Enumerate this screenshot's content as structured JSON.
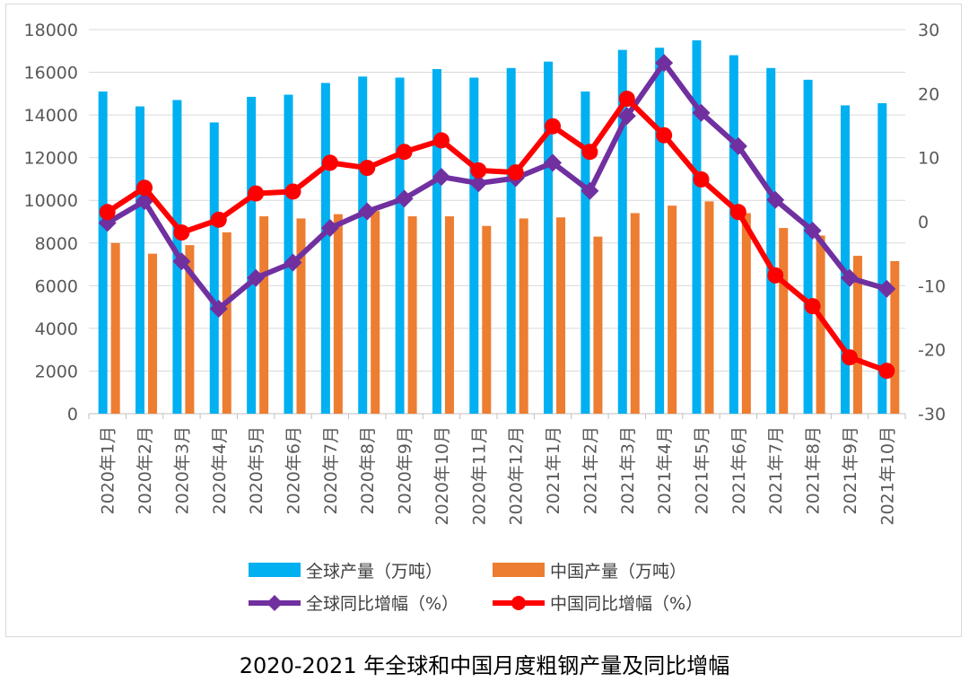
{
  "chart_data": {
    "type": "bar",
    "title": "2020-2021 年全球和中国月度粗钢产量及同比增幅",
    "categories": [
      "2020年1月",
      "2020年2月",
      "2020年3月",
      "2020年4月",
      "2020年5月",
      "2020年6月",
      "2020年7月",
      "2020年8月",
      "2020年9月",
      "2020年10月",
      "2020年11月",
      "2020年12月",
      "2021年1月",
      "2021年2月",
      "2021年3月",
      "2021年4月",
      "2021年5月",
      "2021年6月",
      "2021年7月",
      "2021年8月",
      "2021年9月",
      "2021年10月"
    ],
    "y_left": {
      "min": 0,
      "max": 18000,
      "step": 2000,
      "ticks": [
        "0",
        "2000",
        "4000",
        "6000",
        "8000",
        "10000",
        "12000",
        "14000",
        "16000",
        "18000"
      ]
    },
    "y_right": {
      "min": -30,
      "max": 30,
      "step": 10,
      "ticks": [
        "-30",
        "-20",
        "-10",
        "0",
        "10",
        "20",
        "30"
      ]
    },
    "series": [
      {
        "name": "全球产量（万吨）",
        "type": "bar",
        "axis": "left",
        "color": "#00b0f0",
        "values": [
          15100,
          14400,
          14700,
          13650,
          14850,
          14950,
          15500,
          15800,
          15750,
          16150,
          15750,
          16200,
          16500,
          15100,
          17050,
          17150,
          17500,
          16800,
          16200,
          15650,
          14450,
          14550
        ]
      },
      {
        "name": "中国产量（万吨）",
        "type": "bar",
        "axis": "left",
        "color": "#ed7d31",
        "values": [
          8000,
          7500,
          7900,
          8500,
          9250,
          9150,
          9350,
          9500,
          9250,
          9250,
          8800,
          9150,
          9200,
          8300,
          9400,
          9750,
          9950,
          9400,
          8700,
          8350,
          7400,
          7150
        ]
      },
      {
        "name": "全球同比增幅（%）",
        "type": "line",
        "axis": "right",
        "color": "#7030a0",
        "marker": "diamond",
        "values": [
          -0.2,
          3.2,
          -6.2,
          -13.6,
          -8.8,
          -6.4,
          -1.0,
          1.6,
          3.6,
          7.0,
          6.0,
          6.8,
          9.2,
          4.8,
          16.5,
          24.8,
          17.0,
          11.8,
          3.4,
          -1.4,
          -8.8,
          -10.5
        ]
      },
      {
        "name": "中国同比增幅（%）",
        "type": "line",
        "axis": "right",
        "color": "#ff0000",
        "marker": "circle",
        "values": [
          1.5,
          5.3,
          -1.7,
          0.3,
          4.4,
          4.7,
          9.2,
          8.4,
          10.9,
          12.7,
          8.0,
          7.7,
          14.9,
          10.9,
          19.2,
          13.5,
          6.6,
          1.5,
          -8.4,
          -13.2,
          -21.2,
          -23.3
        ]
      }
    ]
  }
}
